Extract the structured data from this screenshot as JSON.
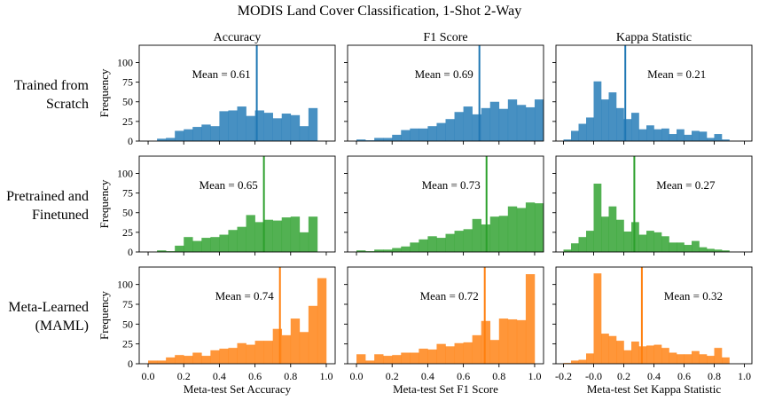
{
  "figure": {
    "title": "MODIS Land Cover Classification, 1-Shot 2-Way",
    "row_labels": [
      [
        "Trained from",
        "Scratch"
      ],
      [
        "Pretrained and",
        "Finetuned"
      ],
      [
        "Meta-Learned",
        "(MAML)"
      ]
    ],
    "col_titles": [
      "Accuracy",
      "F1 Score",
      "Kappa Statistic"
    ],
    "ylabel": "Frequency",
    "xlabels": [
      "Meta-test Set Accuracy",
      "Meta-test Set F1 Score",
      "Meta-test Set Kappa Statistic"
    ],
    "yticks": [
      0,
      25,
      50,
      75,
      100
    ],
    "xticks_01": [
      "0.0",
      "0.2",
      "0.4",
      "0.6",
      "0.8",
      "1.0"
    ],
    "xticks_kappa": [
      "-0.2",
      "-0.0",
      "0.2",
      "0.4",
      "0.6",
      "0.8",
      "1.0"
    ],
    "colors": [
      "#1f77b4",
      "#2ca02c",
      "#ff7f0e"
    ]
  },
  "chart_data": [
    {
      "type": "bar",
      "row": 0,
      "col": 0,
      "title": "Accuracy",
      "xlim": [
        -0.05,
        1.05
      ],
      "ylim": [
        0,
        122
      ],
      "bin_start": 0.05,
      "bin_width": 0.05,
      "values": [
        3,
        4,
        13,
        15,
        18,
        21,
        19,
        38,
        39,
        44,
        32,
        39,
        36,
        29,
        35,
        33,
        19,
        42
      ],
      "mean": 0.61,
      "mean_label": "Mean = 0.61",
      "color": "#1f77b4"
    },
    {
      "type": "bar",
      "row": 0,
      "col": 1,
      "title": "F1 Score",
      "xlim": [
        -0.05,
        1.05
      ],
      "ylim": [
        0,
        122
      ],
      "bin_start": 0.0,
      "bin_width": 0.05,
      "values": [
        2,
        1,
        4,
        4,
        8,
        14,
        16,
        16,
        19,
        23,
        28,
        37,
        44,
        34,
        42,
        50,
        41,
        53,
        46,
        43,
        53
      ],
      "mean": 0.69,
      "mean_label": "Mean = 0.69",
      "color": "#1f77b4"
    },
    {
      "type": "bar",
      "row": 0,
      "col": 2,
      "title": "Kappa Statistic",
      "xlim": [
        -0.25,
        1.05
      ],
      "ylim": [
        0,
        122
      ],
      "bin_start": -0.2,
      "bin_width": 0.05,
      "values": [
        2,
        13,
        22,
        30,
        76,
        53,
        62,
        42,
        28,
        36,
        15,
        20,
        15,
        16,
        9,
        15,
        8,
        13,
        12,
        4,
        9,
        2
      ],
      "mean": 0.21,
      "mean_label": "Mean = 0.21",
      "color": "#1f77b4"
    },
    {
      "type": "bar",
      "row": 1,
      "col": 0,
      "title": "",
      "xlim": [
        -0.05,
        1.05
      ],
      "ylim": [
        0,
        122
      ],
      "bin_start": 0.05,
      "bin_width": 0.05,
      "values": [
        2,
        1,
        8,
        19,
        14,
        18,
        19,
        22,
        28,
        32,
        47,
        38,
        41,
        40,
        44,
        45,
        25,
        45
      ],
      "mean": 0.65,
      "mean_label": "Mean = 0.65",
      "color": "#2ca02c"
    },
    {
      "type": "bar",
      "row": 1,
      "col": 1,
      "title": "",
      "xlim": [
        -0.05,
        1.05
      ],
      "ylim": [
        0,
        122
      ],
      "bin_start": 0.0,
      "bin_width": 0.05,
      "values": [
        2,
        1,
        3,
        3,
        5,
        7,
        12,
        16,
        20,
        18,
        23,
        27,
        29,
        42,
        35,
        45,
        46,
        58,
        56,
        63,
        62
      ],
      "mean": 0.73,
      "mean_label": "Mean = 0.73",
      "color": "#2ca02c"
    },
    {
      "type": "bar",
      "row": 1,
      "col": 2,
      "title": "",
      "xlim": [
        -0.25,
        1.05
      ],
      "ylim": [
        0,
        122
      ],
      "bin_start": -0.2,
      "bin_width": 0.05,
      "values": [
        3,
        11,
        19,
        27,
        87,
        45,
        58,
        41,
        26,
        38,
        22,
        27,
        25,
        20,
        12,
        12,
        9,
        14,
        6,
        4,
        3,
        2
      ],
      "mean": 0.27,
      "mean_label": "Mean = 0.27",
      "color": "#2ca02c"
    },
    {
      "type": "bar",
      "row": 2,
      "col": 0,
      "title": "",
      "xlim": [
        -0.05,
        1.05
      ],
      "ylim": [
        0,
        122
      ],
      "bin_start": 0.0,
      "bin_width": 0.05,
      "values": [
        4,
        4,
        8,
        11,
        10,
        14,
        10,
        17,
        19,
        20,
        26,
        24,
        29,
        29,
        44,
        36,
        57,
        40,
        73,
        108
      ],
      "mean": 0.74,
      "mean_label": "Mean = 0.74",
      "color": "#ff7f0e"
    },
    {
      "type": "bar",
      "row": 2,
      "col": 1,
      "title": "",
      "xlim": [
        -0.05,
        1.05
      ],
      "ylim": [
        0,
        122
      ],
      "bin_start": 0.0,
      "bin_width": 0.05,
      "values": [
        12,
        4,
        12,
        10,
        11,
        14,
        14,
        19,
        18,
        25,
        22,
        26,
        27,
        36,
        54,
        30,
        57,
        56,
        55,
        113
      ],
      "mean": 0.72,
      "mean_label": "Mean = 0.72",
      "color": "#ff7f0e"
    },
    {
      "type": "bar",
      "row": 2,
      "col": 2,
      "title": "",
      "xlim": [
        -0.25,
        1.05
      ],
      "ylim": [
        0,
        122
      ],
      "bin_start": -0.2,
      "bin_width": 0.05,
      "values": [
        1,
        4,
        5,
        13,
        114,
        38,
        35,
        29,
        17,
        28,
        22,
        23,
        24,
        20,
        14,
        12,
        12,
        16,
        12,
        10,
        20,
        8
      ],
      "mean": 0.32,
      "mean_label": "Mean = 0.32",
      "color": "#ff7f0e"
    }
  ]
}
